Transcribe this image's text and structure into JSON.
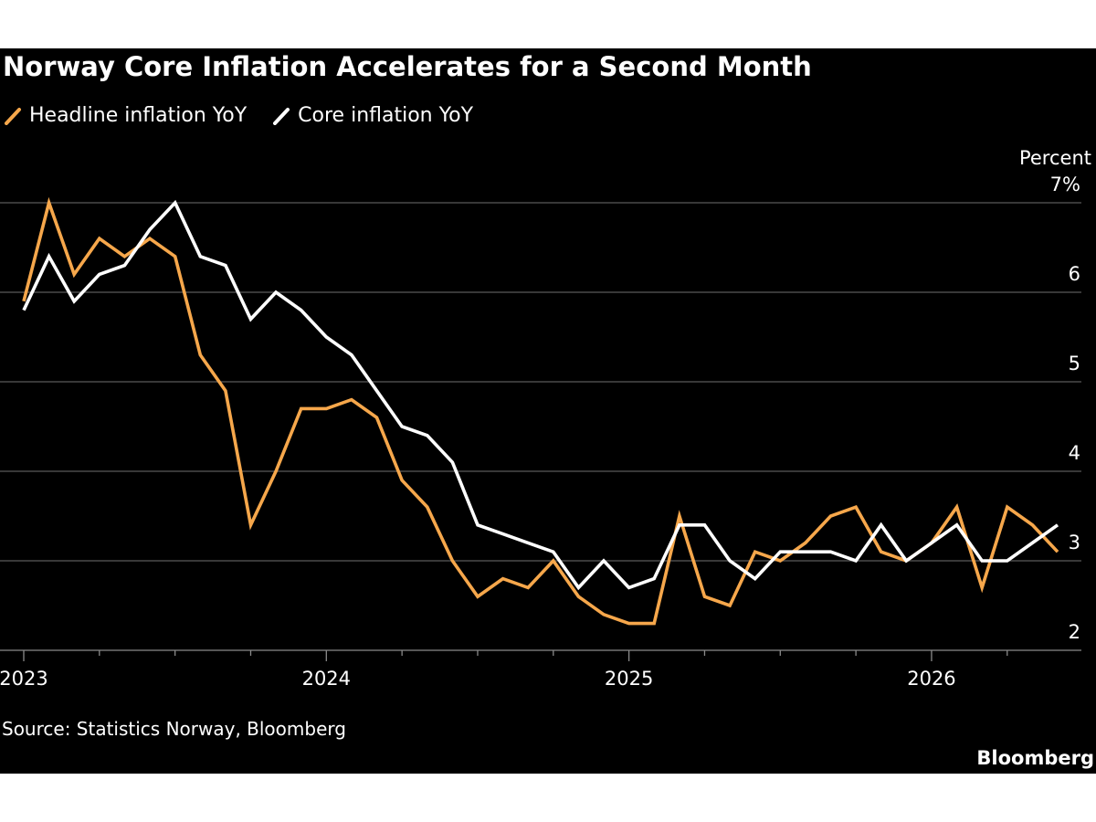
{
  "chart_data": {
    "type": "line",
    "title": "Norway Core Inflation Accelerates for a Second Month",
    "ylabel": "Percent",
    "ylim": [
      2,
      7
    ],
    "yticks": [
      2,
      3,
      4,
      5,
      6,
      7
    ],
    "ytick_labels": [
      "2",
      "3",
      "4",
      "5",
      "6",
      "7%"
    ],
    "xlim": [
      "2023-01",
      "2026-06"
    ],
    "xticks": [
      "2023",
      "2024",
      "2025",
      "2026"
    ],
    "x": [
      "2023-01",
      "2023-02",
      "2023-03",
      "2023-04",
      "2023-05",
      "2023-06",
      "2023-07",
      "2023-08",
      "2023-09",
      "2023-10",
      "2023-11",
      "2023-12",
      "2024-01",
      "2024-02",
      "2024-03",
      "2024-04",
      "2024-05",
      "2024-06",
      "2024-07",
      "2024-08",
      "2024-09",
      "2024-10",
      "2024-11",
      "2024-12",
      "2025-01",
      "2025-02",
      "2025-03",
      "2025-04",
      "2025-05",
      "2025-06",
      "2025-07",
      "2025-08",
      "2025-09",
      "2025-10",
      "2025-11",
      "2025-12",
      "2026-01",
      "2026-02",
      "2026-03",
      "2026-04",
      "2026-05",
      "2026-06"
    ],
    "series": [
      {
        "name": "Headline inflation YoY",
        "color": "#f6a74b",
        "values": [
          5.9,
          7.0,
          6.2,
          6.6,
          6.4,
          6.6,
          6.4,
          5.3,
          4.9,
          3.4,
          4.0,
          4.7,
          4.7,
          4.8,
          4.6,
          3.9,
          3.6,
          3.0,
          2.6,
          2.8,
          2.7,
          3.0,
          2.6,
          2.4,
          2.3,
          2.3,
          3.5,
          2.6,
          2.5,
          3.1,
          3.0,
          3.2,
          3.5,
          3.6,
          3.1,
          3.0,
          3.2,
          3.6,
          2.7,
          3.6,
          3.4,
          3.1
        ]
      },
      {
        "name": "Core inflation YoY",
        "color": "#ffffff",
        "values": [
          5.8,
          6.4,
          5.9,
          6.2,
          6.3,
          6.7,
          7.0,
          6.4,
          6.3,
          5.7,
          6.0,
          5.8,
          5.5,
          5.3,
          4.9,
          4.5,
          4.4,
          4.1,
          3.4,
          3.3,
          3.2,
          3.1,
          2.7,
          3.0,
          2.7,
          2.8,
          3.4,
          3.4,
          3.0,
          2.8,
          3.1,
          3.1,
          3.1,
          3.0,
          3.4,
          3.0,
          3.2,
          3.4,
          3.0,
          3.0,
          3.2,
          3.4
        ]
      }
    ],
    "legend": "top-left",
    "grid": true,
    "source": "Source: Statistics Norway, Bloomberg",
    "brand": "Bloomberg"
  }
}
